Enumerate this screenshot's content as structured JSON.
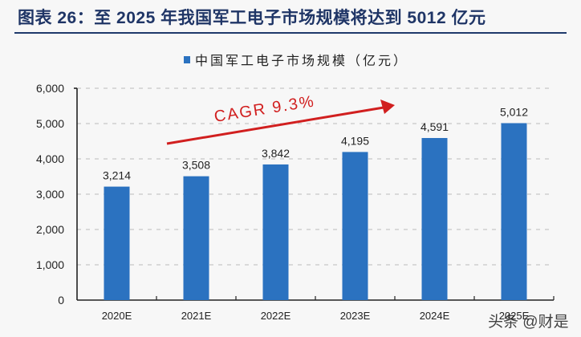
{
  "header": {
    "title": "图表 26：至 2025 年我国军工电子市场规模将达到 5012 亿元"
  },
  "legend": {
    "label": "中国军工电子市场规模（亿元）",
    "color": "#2b72c0"
  },
  "annotation": {
    "text": "CAGR 9.3%",
    "color": "#d11f1f"
  },
  "watermark": "头条 @财是",
  "colors": {
    "bar": "#2b72c0",
    "title": "#1f3566",
    "arrow": "#d11f1f",
    "grid": "#bbbbbb"
  },
  "chart_data": {
    "type": "bar",
    "title": "至 2025 年我国军工电子市场规模将达到 5012 亿元",
    "categories": [
      "2020E",
      "2021E",
      "2022E",
      "2023E",
      "2024E",
      "2025E"
    ],
    "series": [
      {
        "name": "中国军工电子市场规模（亿元）",
        "values": [
          3214,
          3508,
          3842,
          4195,
          4591,
          5012
        ]
      }
    ],
    "value_labels": [
      "3,214",
      "3,508",
      "3,842",
      "4,195",
      "4,591",
      "5,012"
    ],
    "xlabel": "",
    "ylabel": "",
    "ylim": [
      0,
      6000
    ],
    "yticks": [
      0,
      1000,
      2000,
      3000,
      4000,
      5000,
      6000
    ],
    "ytick_labels": [
      "0",
      "1,000",
      "2,000",
      "3,000",
      "4,000",
      "5,000",
      "6,000"
    ],
    "grid": "horizontal dashed",
    "legend_position": "top",
    "annotations": [
      {
        "text": "CAGR 9.3%",
        "type": "arrow",
        "direction": "up-right"
      }
    ]
  }
}
